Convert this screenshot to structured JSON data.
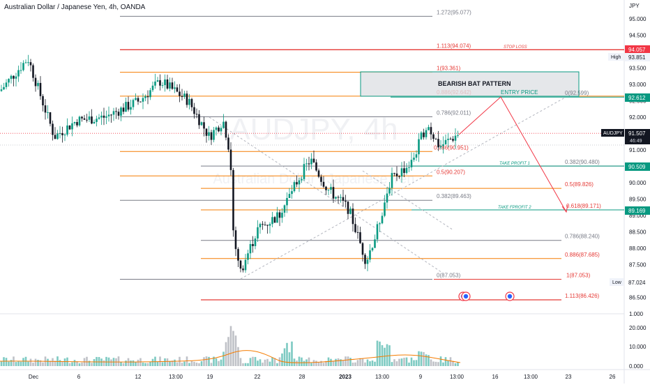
{
  "header": {
    "title": "Australian Dollar / Japanese Yen, 4h, OANDA"
  },
  "axis": {
    "currency": "JPY"
  },
  "watermark": {
    "symbol": "AUDJPY, 4h",
    "name": "Australian Dollar / Japanese Yen"
  },
  "price_ticks": [
    "95.000",
    "94.500",
    "94.000",
    "93.500",
    "93.000",
    "92.500",
    "92.000",
    "91.500",
    "91.000",
    "90.500",
    "90.000",
    "89.500",
    "89.000",
    "88.500",
    "88.000",
    "87.500",
    "87.000",
    "86.500"
  ],
  "volume_ticks": [
    "1.000",
    "20.000",
    "10.000",
    "0.000"
  ],
  "time_ticks": [
    "Dec",
    "6",
    "12",
    "13:00",
    "19",
    "22",
    "28",
    "2023",
    "13:00",
    "9",
    "13:00",
    "16",
    "13:00",
    "23",
    "26"
  ],
  "badges": {
    "stop_loss": {
      "value": "94.057",
      "color": "#f23645"
    },
    "high": {
      "label": "High",
      "value": "93.851"
    },
    "entry": {
      "value": "92.612",
      "color": "#089981"
    },
    "last": {
      "symbol": "AUDJPY",
      "value": "91.507",
      "countdown": "46:49",
      "color": "#131722"
    },
    "tp1": {
      "value": "90.509",
      "color": "#089981"
    },
    "tp2": {
      "value": "89.169",
      "color": "#089981"
    },
    "low": {
      "label": "Low",
      "value": "87.024"
    }
  },
  "annotations": {
    "stop_loss": "STOP LOSS",
    "pattern": "BEARISH BAT PATTERN",
    "entry": "ENTRY PRICE",
    "tp1": "TAKE PROFIT 1",
    "tp2": "TAKE FPROFIT 2"
  },
  "fib_labels": {
    "l1": "1.272(95.077)",
    "l2": "1.113(94.074)",
    "l3": "1(93.361)",
    "l4": "0.886(92.642)",
    "l5": "0(92.599)",
    "l6": "0.786(92.011)",
    "l7": "0.786(90.951)",
    "l8": "0.382(90.480)",
    "l9": "0.5(90.207)",
    "l10": "0.5(89.826)",
    "l11": "0.382(89.463)",
    "l12": "0.618(89.171)",
    "l13": "0.786(88.240)",
    "l14": "0.886(87.685)",
    "l15": "0(87.053)",
    "l16": "1(87.053)",
    "l17": "1.113(86.426)"
  },
  "colors": {
    "up": "#089981",
    "down": "#131722",
    "fib_orange": "#f57c00",
    "fib_red": "#e53935",
    "fib_gray": "#787b86",
    "arrow": "#f23645"
  }
}
